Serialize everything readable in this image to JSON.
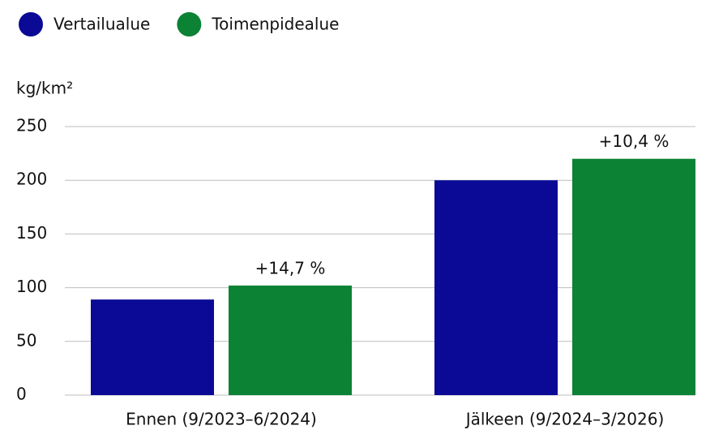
{
  "chart_data": {
    "type": "bar",
    "y_label": "kg/km²",
    "categories": [
      "Ennen (9/2023–6/2024)",
      "Jälkeen (9/2024–3/2026)"
    ],
    "series": [
      {
        "name": "Vertailualue",
        "color": "#0a0a96",
        "values": [
          89,
          200
        ]
      },
      {
        "name": "Toimenpidealue",
        "color": "#0b8234",
        "values": [
          102,
          220
        ]
      }
    ],
    "annotations": [
      "+14,7 %",
      "+10,4 %"
    ],
    "ylim": [
      0,
      250
    ],
    "yticks": [
      0,
      50,
      100,
      150,
      200,
      250
    ],
    "grid": true,
    "legend": "top-left"
  }
}
